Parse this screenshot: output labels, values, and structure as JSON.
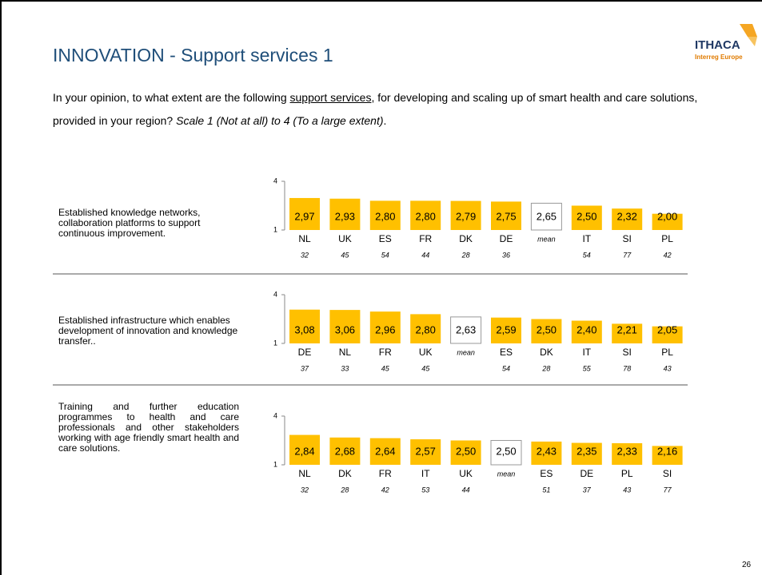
{
  "header": {
    "title": "INNOVATION - Support services 1",
    "logo": "ITHACA",
    "logo_sub": "Interreg Europe"
  },
  "question": {
    "before": "In your opinion, to what extent are the following ",
    "link": "support services",
    "after": ", for developing and scaling up of smart health and care solutions, provided in your region? ",
    "scale": "Scale 1 (Not at all) to 4 (To a large extent)",
    "end": "."
  },
  "page_number": "26",
  "chart_data": [
    {
      "type": "bar",
      "title": "Established knowledge networks, collaboration platforms to support continuous improvement.",
      "categories": [
        "NL",
        "UK",
        "ES",
        "FR",
        "DK",
        "DE",
        "mean",
        "IT",
        "SI",
        "PL"
      ],
      "values": [
        2.97,
        2.93,
        2.8,
        2.8,
        2.79,
        2.75,
        2.65,
        2.5,
        2.32,
        2.0
      ],
      "value_labels": [
        "2,97",
        "2,93",
        "2,80",
        "2,80",
        "2,79",
        "2,75",
        "2,65",
        "2,50",
        "2,32",
        "2,00"
      ],
      "counts": [
        32,
        45,
        54,
        44,
        28,
        36,
        null,
        54,
        77,
        42
      ],
      "colors": [
        "#ffc000",
        "#ffc000",
        "#ffc000",
        "#ffc000",
        "#ffc000",
        "#ffc000",
        "#ffffff",
        "#ffc000",
        "#ffc000",
        "#ffc000"
      ],
      "ylim": [
        1,
        4
      ],
      "yticks": [
        1,
        4
      ]
    },
    {
      "type": "bar",
      "title": "Established infrastructure which enables development of innovation and knowledge transfer..",
      "categories": [
        "DE",
        "NL",
        "FR",
        "UK",
        "mean",
        "ES",
        "DK",
        "IT",
        "SI",
        "PL"
      ],
      "values": [
        3.08,
        3.06,
        2.96,
        2.8,
        2.63,
        2.59,
        2.5,
        2.4,
        2.21,
        2.05
      ],
      "value_labels": [
        "3,08",
        "3,06",
        "2,96",
        "2,80",
        "2,63",
        "2,59",
        "2,50",
        "2,40",
        "2,21",
        "2,05"
      ],
      "counts": [
        37,
        33,
        45,
        45,
        null,
        54,
        28,
        55,
        78,
        43
      ],
      "colors": [
        "#ffc000",
        "#ffc000",
        "#ffc000",
        "#ffc000",
        "#ffffff",
        "#ffc000",
        "#ffc000",
        "#ffc000",
        "#ffc000",
        "#ffc000"
      ],
      "ylim": [
        1,
        4
      ],
      "yticks": [
        1,
        4
      ]
    },
    {
      "type": "bar",
      "title": "Training and further education programmes to health and care professionals and other stakeholders working with age friendly smart health and care solutions.",
      "categories": [
        "NL",
        "DK",
        "FR",
        "IT",
        "UK",
        "mean",
        "ES",
        "DE",
        "PL",
        "SI"
      ],
      "values": [
        2.84,
        2.68,
        2.64,
        2.57,
        2.5,
        2.5,
        2.43,
        2.35,
        2.33,
        2.16
      ],
      "value_labels": [
        "2,84",
        "2,68",
        "2,64",
        "2,57",
        "2,50",
        "2,50",
        "2,43",
        "2,35",
        "2,33",
        "2,16"
      ],
      "counts": [
        32,
        28,
        42,
        53,
        44,
        null,
        51,
        37,
        43,
        77
      ],
      "colors": [
        "#ffc000",
        "#ffc000",
        "#ffc000",
        "#ffc000",
        "#ffc000",
        "#ffffff",
        "#ffc000",
        "#ffc000",
        "#ffc000",
        "#ffc000"
      ],
      "ylim": [
        1,
        4
      ],
      "yticks": [
        1,
        4
      ]
    }
  ]
}
